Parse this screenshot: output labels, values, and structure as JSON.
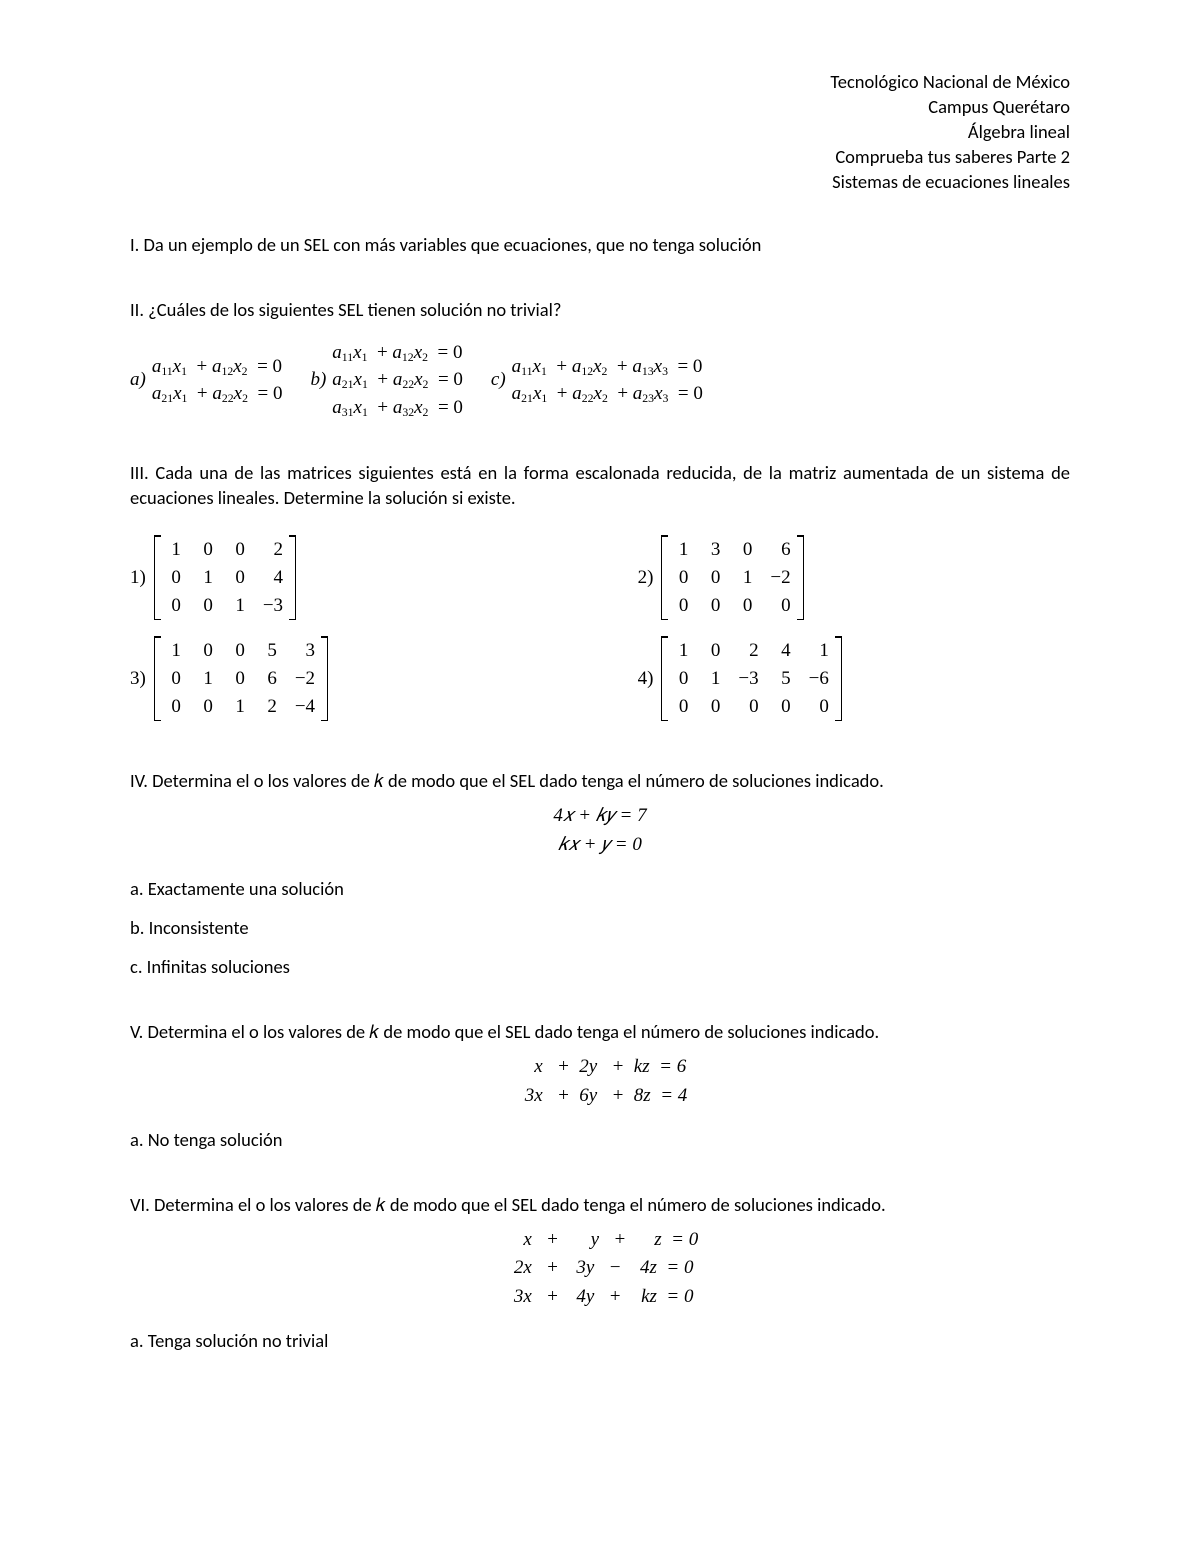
{
  "header": {
    "l1": "Tecnológico Nacional de México",
    "l2": "Campus Querétaro",
    "l3": "Álgebra lineal",
    "l4": "Comprueba tus saberes Parte 2",
    "l5": "Sistemas de ecuaciones lineales"
  },
  "q1": "I. Da un ejemplo de un SEL con más variables que ecuaciones, que no tenga solución",
  "q2": {
    "title": "II. ¿Cuáles de los siguientes SEL tienen solución no trivial?",
    "labels": {
      "a": "a)",
      "b": "b)",
      "c": "c)"
    }
  },
  "q3": {
    "title": "III. Cada una de las matrices siguientes está en la forma escalonada reducida, de la matriz aumentada de un sistema de ecuaciones lineales. Determine la solución si existe.",
    "labels": {
      "m1": "1)",
      "m2": "2)",
      "m3": "3)",
      "m4": "4)"
    },
    "m1": {
      "cols": 4,
      "rows": [
        [
          "1",
          "0",
          "0",
          "2"
        ],
        [
          "0",
          "1",
          "0",
          "4"
        ],
        [
          "0",
          "0",
          "1",
          "−3"
        ]
      ]
    },
    "m2": {
      "cols": 4,
      "rows": [
        [
          "1",
          "3",
          "0",
          "6"
        ],
        [
          "0",
          "0",
          "1",
          "−2"
        ],
        [
          "0",
          "0",
          "0",
          "0"
        ]
      ]
    },
    "m3": {
      "cols": 5,
      "rows": [
        [
          "1",
          "0",
          "0",
          "5",
          "3"
        ],
        [
          "0",
          "1",
          "0",
          "6",
          "−2"
        ],
        [
          "0",
          "0",
          "1",
          "2",
          "−4"
        ]
      ]
    },
    "m4": {
      "cols": 5,
      "rows": [
        [
          "1",
          "0",
          "2",
          "4",
          "1"
        ],
        [
          "0",
          "1",
          "−3",
          "5",
          "−6"
        ],
        [
          "0",
          "0",
          "0",
          "0",
          "0"
        ]
      ]
    }
  },
  "q4": {
    "title": "IV. Determina el o los valores de 𝑘 de modo que el SEL dado tenga el número de soluciones indicado.",
    "eq1": "4𝑥 + 𝑘𝑦 = 7",
    "eq2": "𝑘𝑥 + 𝑦 = 0",
    "optA": "a. Exactamente una solución",
    "optB": "b. Inconsistente",
    "optC": "c. Infinitas soluciones"
  },
  "q5": {
    "title": "V. Determina el o los valores de 𝑘 de modo que el SEL dado tenga el número de soluciones indicado.",
    "optA": "a. No tenga solución"
  },
  "q6": {
    "title": "VI. Determina el o los valores de 𝑘 de modo que el SEL dado tenga el número de soluciones indicado.",
    "optA": "a. Tenga solución no trivial"
  }
}
